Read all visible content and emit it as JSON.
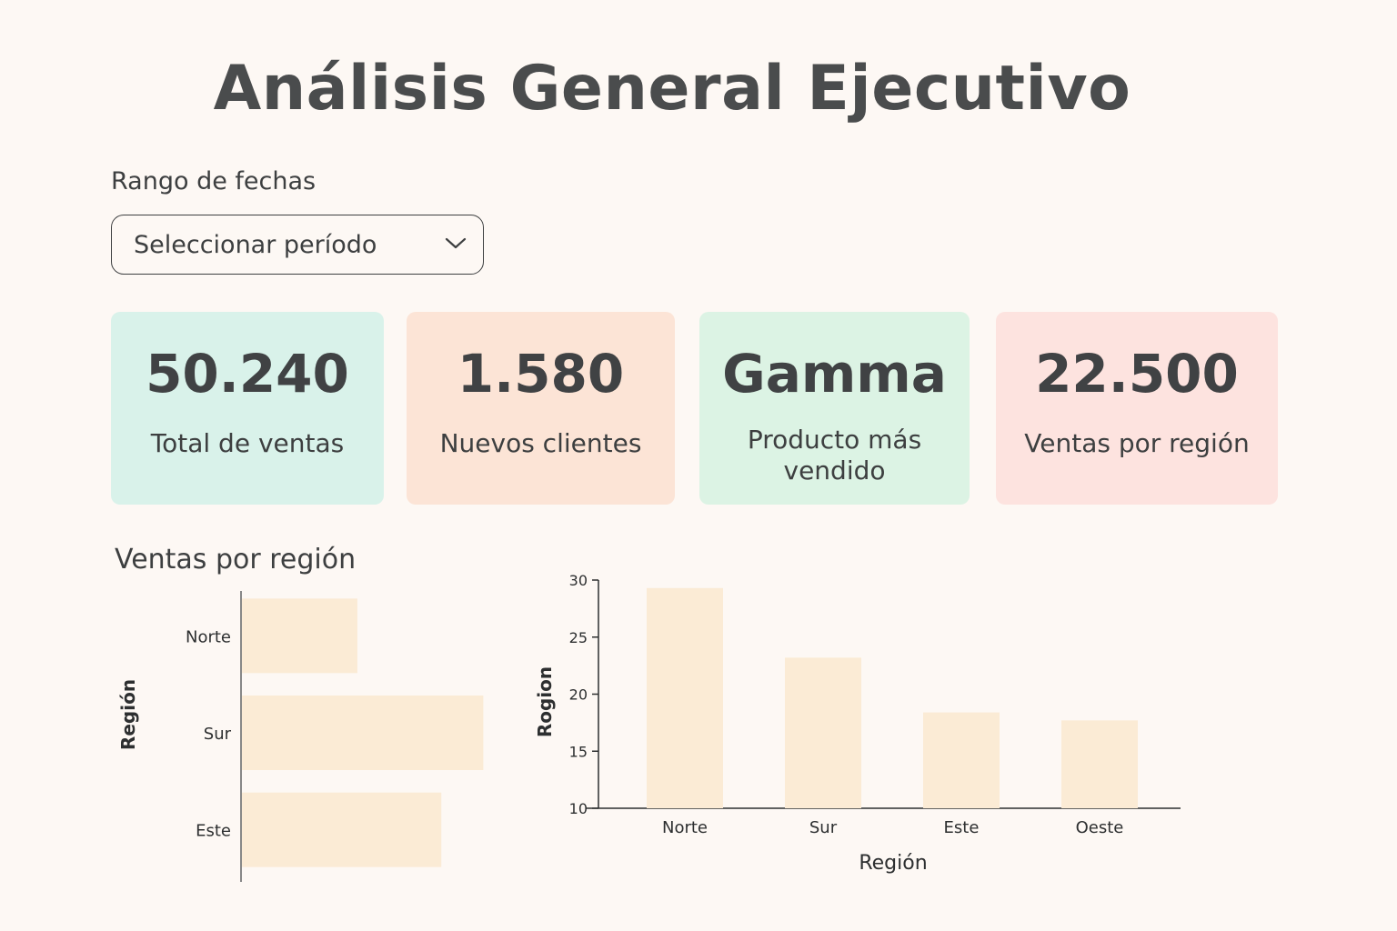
{
  "header": {
    "title": "Análisis General Ejecutivo"
  },
  "filter": {
    "label": "Rango de fechas",
    "select_value": "Seleccionar período",
    "icon": "chevron-down-icon"
  },
  "kpis": [
    {
      "value": "50.240",
      "label": "Total de ventas",
      "color": "#d9f2ea"
    },
    {
      "value": "1.580",
      "label": "Nuevos clientes",
      "color": "#fce4d6"
    },
    {
      "value": "Gamma",
      "label": "Producto más vendido",
      "color": "#dcf3e4"
    },
    {
      "value": "22.500",
      "label": "Ventas por región",
      "color": "#fde3df"
    }
  ],
  "section": {
    "title": "Ventas por región"
  },
  "colors": {
    "bar": "#fbebd5",
    "axis": "#2d2f30"
  },
  "chart_data": [
    {
      "type": "bar",
      "orientation": "horizontal",
      "categories": [
        "Norte",
        "Sur",
        "Este"
      ],
      "values": [
        55,
        115,
        95
      ],
      "ylabel": "Región",
      "xlabel": "",
      "ticks_shown": false
    },
    {
      "type": "bar",
      "categories": [
        "Norte",
        "Sur",
        "Este",
        "Oeste"
      ],
      "values": [
        29.3,
        23.2,
        18.4,
        17.7
      ],
      "xlabel": "Región",
      "ylabel": "Rogion",
      "ylim": [
        10,
        30
      ],
      "yticks": [
        "10",
        "15",
        "20",
        "25",
        "30"
      ],
      "grid": false
    }
  ]
}
